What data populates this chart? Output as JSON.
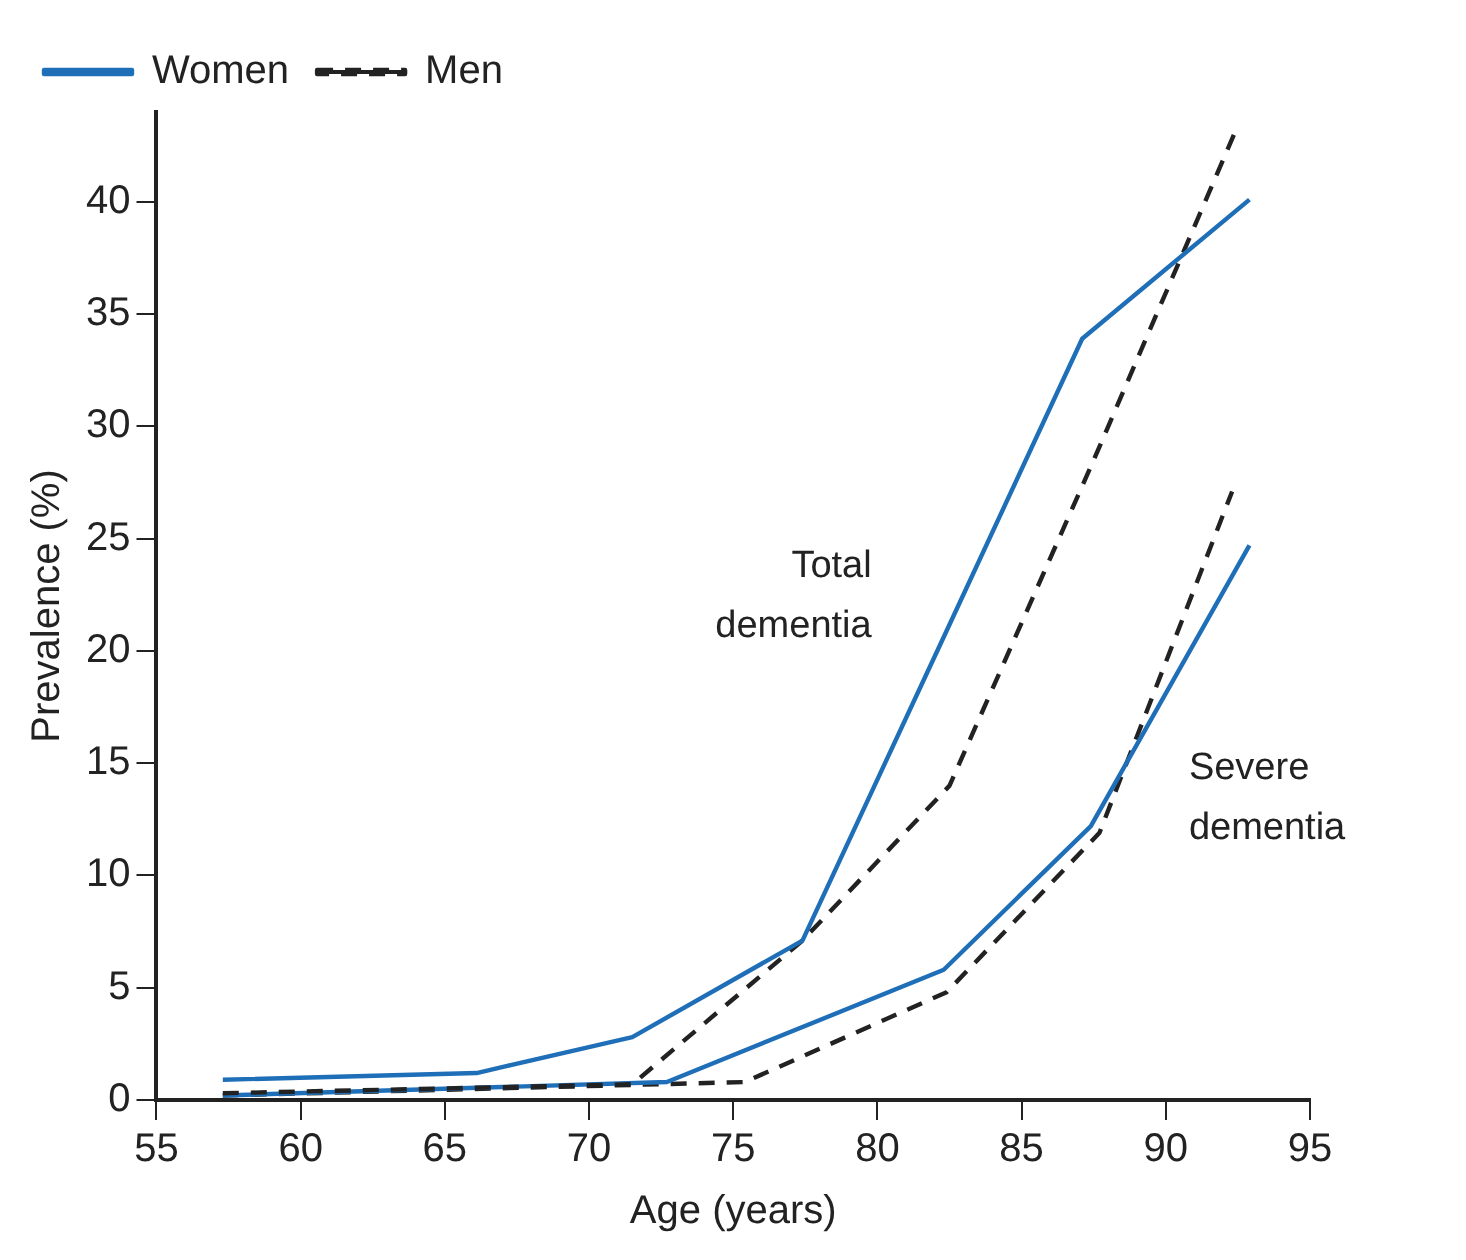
{
  "chart_data": {
    "type": "line",
    "xlabel": "Age (years)",
    "ylabel": "Prevalence (%)",
    "xlim": [
      55,
      95
    ],
    "xticks": [
      55,
      60,
      65,
      70,
      75,
      80,
      85,
      90,
      95
    ],
    "ylim": [
      0,
      44
    ],
    "yticks": [
      0,
      5,
      10,
      15,
      20,
      25,
      30,
      35,
      40
    ],
    "series": [
      {
        "name": "Women",
        "color": "#1f6fb8",
        "line_style": "solid",
        "x": [
          57.3,
          66.1,
          71.5,
          77.4,
          82.4,
          87.1,
          92.9
        ],
        "values": [
          0.9,
          1.2,
          2.8,
          7.1,
          20.9,
          33.9,
          40.1
        ]
      },
      {
        "name": "Men",
        "color": "#222222",
        "line_style": "dashed",
        "x": [
          57.3,
          71.5,
          77.4,
          82.5,
          87.5,
          92.4
        ],
        "values": [
          0.3,
          0.7,
          7.1,
          14,
          28.5,
          43.1
        ]
      },
      {
        "color": "#1f6fb8",
        "line_style": "solid",
        "x": [
          57.3,
          72.7,
          82.3,
          87.4,
          92.9
        ],
        "values": [
          0.2,
          0.8,
          5.8,
          12.2,
          24.7
        ]
      },
      {
        "color": "#222222",
        "line_style": "dashed",
        "x": [
          57.3,
          75.4,
          82.4,
          87.7,
          92.3
        ],
        "values": [
          0.2,
          0.8,
          4.8,
          11.9,
          27.1
        ]
      }
    ],
    "annotations": [
      "Total dementia",
      "Severe dementia"
    ],
    "legend": "top left",
    "grid": false,
    "marker": "none"
  }
}
